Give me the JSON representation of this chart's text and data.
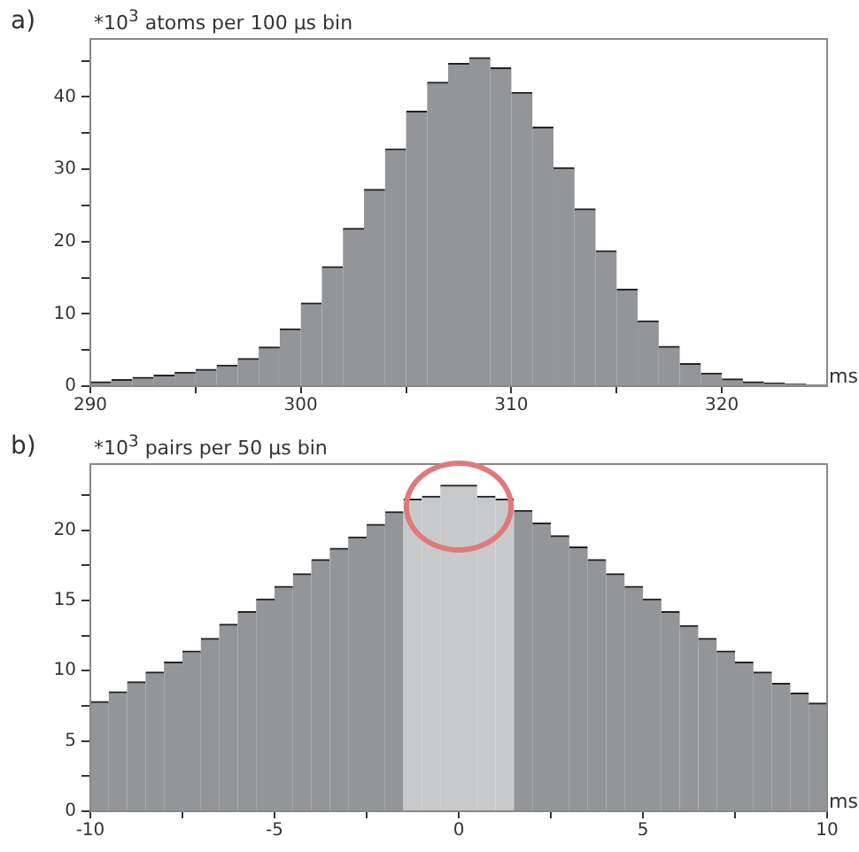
{
  "chart_data": [
    {
      "type": "histogram",
      "title": "a)",
      "ylabel": "*10$^{3}$ atoms per 100 µs bin",
      "xlabel": "ms",
      "color": "#939598",
      "bins": [
        290,
        291,
        292,
        293,
        294,
        295,
        296,
        297,
        298,
        299,
        300,
        301,
        302,
        303,
        304,
        305,
        306,
        307,
        308,
        309,
        310,
        311,
        312,
        313,
        314,
        315,
        316,
        317,
        318,
        319,
        320,
        321,
        322,
        323,
        324,
        325
      ],
      "values": [
        0.6,
        0.9,
        1.2,
        1.5,
        1.9,
        2.3,
        2.9,
        3.8,
        5.4,
        7.9,
        11.5,
        16.5,
        21.8,
        27.2,
        32.8,
        38,
        42,
        44.6,
        45.4,
        44,
        40.6,
        35.8,
        30.2,
        24.5,
        18.7,
        13.4,
        9,
        5.5,
        3.1,
        1.8,
        1,
        0.6,
        0.4,
        0.3,
        0.2
      ],
      "xlim": [
        290,
        325
      ],
      "xticks": [
        290,
        {
          "value": 295,
          "label": null
        },
        300,
        {
          "value": 305,
          "label": null
        },
        310,
        {
          "value": 315,
          "label": null
        },
        320
      ],
      "ylim": [
        0,
        48
      ],
      "yticks": [
        0,
        {
          "value": 5,
          "label": null
        },
        10,
        {
          "value": 15,
          "label": null
        },
        20,
        {
          "value": 25,
          "label": null
        },
        30,
        {
          "value": 35,
          "label": null
        },
        40,
        {
          "value": 45,
          "label": null
        }
      ]
    },
    {
      "type": "histogram",
      "title": "b)",
      "ylabel": "*10$^{3}$ pairs per 50 µs bin",
      "xlabel": "ms",
      "bins": [
        -10,
        -9.5,
        -9,
        -8.5,
        -8,
        -7.5,
        -7,
        -6.5,
        -6,
        -5.5,
        -5,
        -4.5,
        -4,
        -3.5,
        -3,
        -2.5,
        -2,
        -1.5,
        -1,
        -0.5,
        0,
        0.5,
        1,
        1.5,
        2,
        2.5,
        3,
        3.5,
        4,
        4.5,
        5,
        5.5,
        6,
        6.5,
        7,
        7.5,
        8,
        8.5,
        9,
        9.5,
        10
      ],
      "values": [
        7.8,
        8.5,
        9.2,
        9.9,
        10.6,
        11.4,
        12.3,
        13.3,
        14.2,
        15.1,
        16,
        16.9,
        17.9,
        18.7,
        19.5,
        20.4,
        21.3,
        22.2,
        22.4,
        23.2,
        23.2,
        22.4,
        22.2,
        21.4,
        20.5,
        19.6,
        18.8,
        17.9,
        16.9,
        16,
        15.1,
        14.2,
        13.2,
        12.3,
        11.4,
        10.6,
        9.9,
        9.1,
        8.4,
        7.7
      ],
      "colors": [
        "#939598",
        "#939598",
        "#939598",
        "#939598",
        "#939598",
        "#939598",
        "#939598",
        "#939598",
        "#939598",
        "#939598",
        "#939598",
        "#939598",
        "#939598",
        "#939598",
        "#939598",
        "#939598",
        "#939598",
        "#c8c9cb",
        "#c8c9cb",
        "#c8c9cb",
        "#c8c9cb",
        "#c8c9cb",
        "#c8c9cb",
        "#939598",
        "#939598",
        "#939598",
        "#939598",
        "#939598",
        "#939598",
        "#939598",
        "#939598",
        "#939598",
        "#939598",
        "#939598",
        "#939598",
        "#939598",
        "#939598",
        "#939598",
        "#939598",
        "#939598"
      ],
      "xlim": [
        -10,
        10
      ],
      "xticks": [
        -10,
        {
          "value": -7.5,
          "label": null
        },
        -5,
        {
          "value": -2.5,
          "label": null
        },
        0,
        {
          "value": 2.5,
          "label": null
        },
        5,
        {
          "value": 7.5,
          "label": null
        },
        10
      ],
      "ylim": [
        0,
        24.7
      ],
      "yticks": [
        0,
        {
          "value": 2.5,
          "label": null
        },
        5,
        {
          "value": 7.5,
          "label": null
        },
        10,
        {
          "value": 12.5,
          "label": null
        },
        15,
        {
          "value": 17.5,
          "label": null
        },
        20,
        {
          "value": 22.5,
          "label": null
        }
      ]
    }
  ]
}
